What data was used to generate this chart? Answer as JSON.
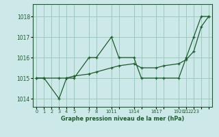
{
  "bg_color": "#cce8e8",
  "grid_color": "#99ccbb",
  "line_color": "#1a5c2a",
  "title": "Graphe pression niveau de la mer (hPa)",
  "xlim": [
    -0.5,
    23.5
  ],
  "ylim": [
    1013.6,
    1018.6
  ],
  "yticks": [
    1014,
    1015,
    1016,
    1017,
    1018
  ],
  "xtick_positions": [
    0,
    1,
    2,
    3,
    4,
    5,
    7,
    8,
    10,
    11,
    13,
    14,
    16,
    17,
    19,
    20,
    21,
    22,
    23
  ],
  "xtick_labels": [
    "0",
    "1",
    "2",
    "3",
    "4",
    "5",
    "7",
    "8",
    "1011",
    "",
    "1314",
    "",
    "1617",
    "",
    "1920",
    "21",
    "2223",
    "",
    ""
  ],
  "line1_x": [
    0,
    1,
    3,
    4,
    5,
    7,
    8,
    10,
    11,
    13,
    14,
    16,
    17,
    19,
    20,
    21,
    22,
    23
  ],
  "line1_y": [
    1015.0,
    1015.0,
    1014.0,
    1015.0,
    1015.0,
    1016.0,
    1016.0,
    1017.0,
    1016.0,
    1016.0,
    1015.0,
    1015.0,
    1015.0,
    1015.0,
    1016.0,
    1017.0,
    1018.0,
    1018.0
  ],
  "line2_x": [
    0,
    1,
    3,
    4,
    5,
    7,
    8,
    10,
    11,
    13,
    14,
    16,
    17,
    19,
    20,
    21,
    22,
    23
  ],
  "line2_y": [
    1015.0,
    1015.0,
    1015.0,
    1015.0,
    1015.1,
    1015.2,
    1015.3,
    1015.5,
    1015.6,
    1015.7,
    1015.5,
    1015.5,
    1015.6,
    1015.7,
    1015.9,
    1016.3,
    1017.5,
    1018.0
  ]
}
